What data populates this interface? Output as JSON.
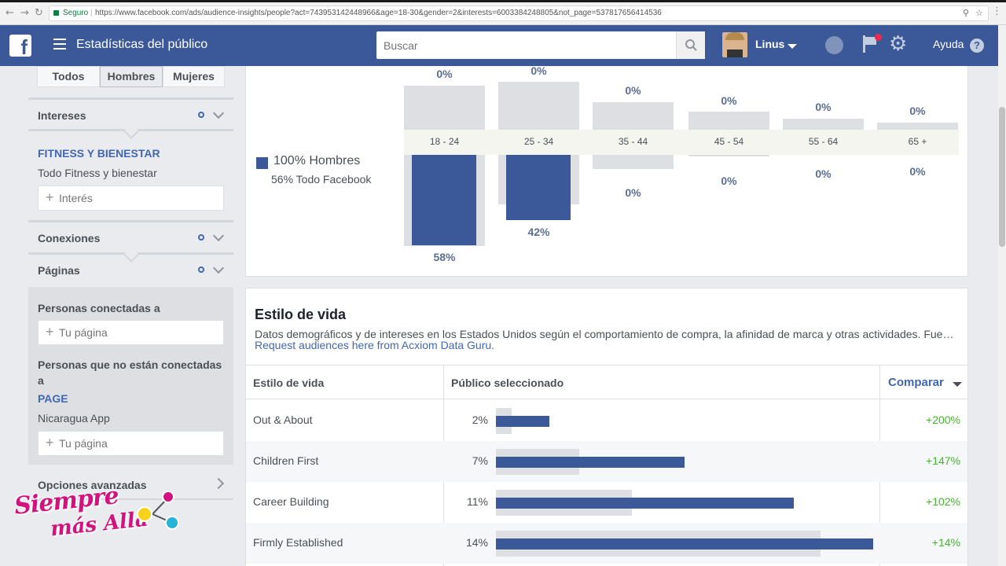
{
  "browser": {
    "secure_label": "Seguro",
    "url": "https://www.facebook.com/ads/audience-insights/people?act=743953142448966&age=18-30&gender=2&interests=6003384248805&not_page=537817656414536"
  },
  "header": {
    "title": "Estadísticas del público",
    "search_placeholder": "Buscar",
    "user_name": "Linus",
    "help_label": "Ayuda",
    "help_icon_text": "?"
  },
  "sidebar": {
    "gender_tabs": [
      "Todos",
      "Hombres",
      "Mujeres"
    ],
    "active_tab": "Hombres",
    "interests": {
      "heading": "Intereses",
      "category": "FITNESS Y BIENESTAR",
      "subcategory": "Todo Fitness y bienestar",
      "placeholder": "Interés"
    },
    "connections_heading": "Conexiones",
    "pages": {
      "heading": "Páginas",
      "connected_heading": "Personas conectadas a",
      "connected_placeholder": "Tu página",
      "not_connected_heading": "Personas que no están conectadas a",
      "page_label": "PAGE",
      "page_name": "Nicaragua App",
      "not_connected_placeholder": "Tu página"
    },
    "advanced_options": "Opciones avanzadas"
  },
  "age_chart": {
    "legend_primary": "100% Hombres",
    "legend_secondary": "56% Todo Facebook",
    "groups": [
      {
        "label": "18 - 24",
        "top_pct": "0%",
        "bottom_pct": "58%"
      },
      {
        "label": "25 - 34",
        "top_pct": "0%",
        "bottom_pct": "42%"
      },
      {
        "label": "35 - 44",
        "top_pct": "0%",
        "bottom_pct": "0%"
      },
      {
        "label": "45 - 54",
        "top_pct": "0%",
        "bottom_pct": "0%"
      },
      {
        "label": "55 - 64",
        "top_pct": "0%",
        "bottom_pct": "0%"
      },
      {
        "label": "65 +",
        "top_pct": "0%",
        "bottom_pct": "0%"
      }
    ]
  },
  "lifestyle": {
    "title": "Estilo de vida",
    "description": "Datos demográficos y de intereses en los Estados Unidos según el comportamiento de compra, la afinidad de marca y otras actividades. Fue…",
    "link": "Request audiences here from Acxiom Data Guru.",
    "col_lifestyle": "Estilo de vida",
    "col_selected": "Público seleccionado",
    "col_compare": "Comparar",
    "rows": [
      {
        "name": "Out & About",
        "pct": "2%",
        "compare": "+200%"
      },
      {
        "name": "Children First",
        "pct": "7%",
        "compare": "+147%"
      },
      {
        "name": "Career Building",
        "pct": "11%",
        "compare": "+102%"
      },
      {
        "name": "Firmly Established",
        "pct": "14%",
        "compare": "+14%"
      }
    ]
  },
  "watermark": {
    "line1": "Siempre",
    "line2": "más Allá"
  }
}
